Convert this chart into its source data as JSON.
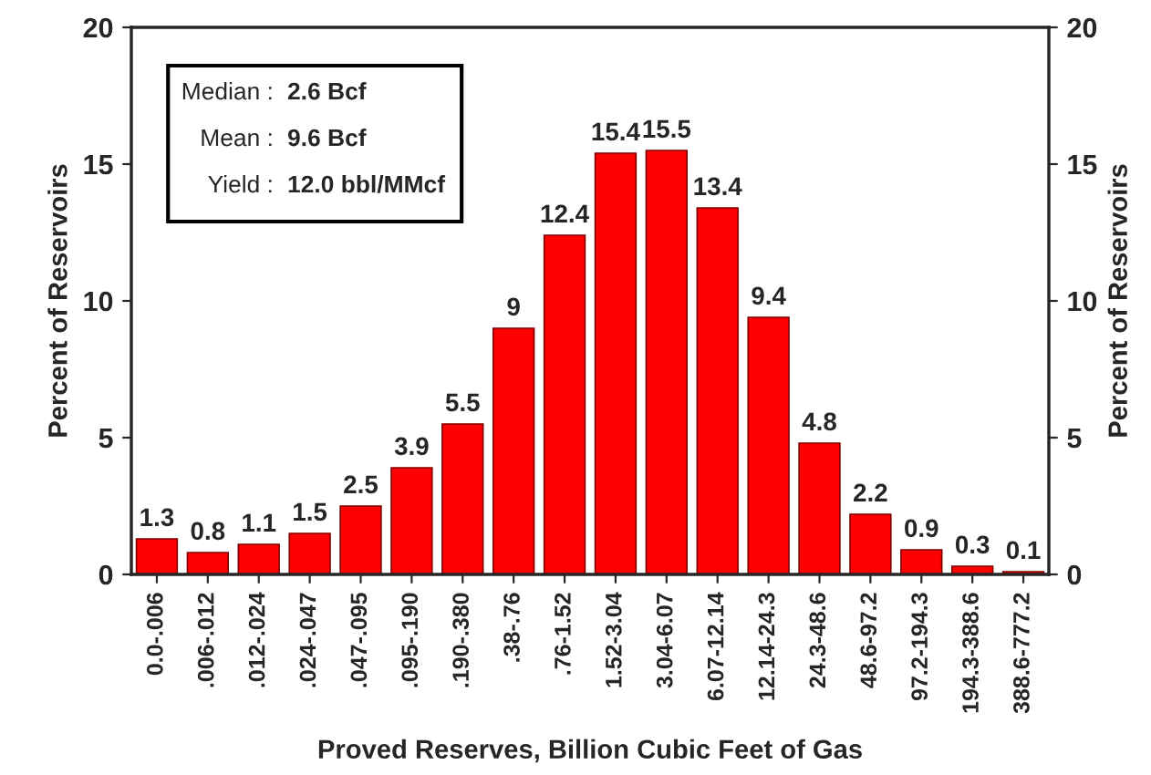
{
  "chart_data": {
    "type": "bar",
    "xlabel": "Proved Reserves, Billion Cubic Feet of Gas",
    "ylabel": "Percent of Reservoirs",
    "y2label": "Percent of Reservoirs",
    "categories": [
      "0.0-.006",
      ".006-.012",
      ".012-.024",
      ".024-.047",
      ".047-.095",
      ".095-.190",
      ".190-.380",
      ".38-.76",
      ".76-1.52",
      "1.52-3.04",
      "3.04-6.07",
      "6.07-12.14",
      "12.14-24.3",
      "24.3-48.6",
      "48.6-97.2",
      "97.2-194.3",
      "194.3-388.6",
      "388.6-777.2"
    ],
    "values": [
      1.3,
      0.8,
      1.1,
      1.5,
      2.5,
      3.9,
      5.5,
      9,
      12.4,
      15.4,
      15.5,
      13.4,
      9.4,
      4.8,
      2.2,
      0.9,
      0.3,
      0.1
    ],
    "color": "#ff0000",
    "data_labels": true,
    "ylim": [
      0,
      20
    ],
    "yticks": [
      0,
      5,
      10,
      15,
      20
    ],
    "y2lim": [
      0,
      20
    ],
    "y2ticks": [
      0,
      5,
      10,
      15,
      20
    ],
    "grid": false,
    "annotations": [
      "Median :",
      "2.6 Bcf",
      "Mean :",
      "9.6 Bcf",
      "Yield :",
      "12.0 bbl/MMcf"
    ]
  }
}
